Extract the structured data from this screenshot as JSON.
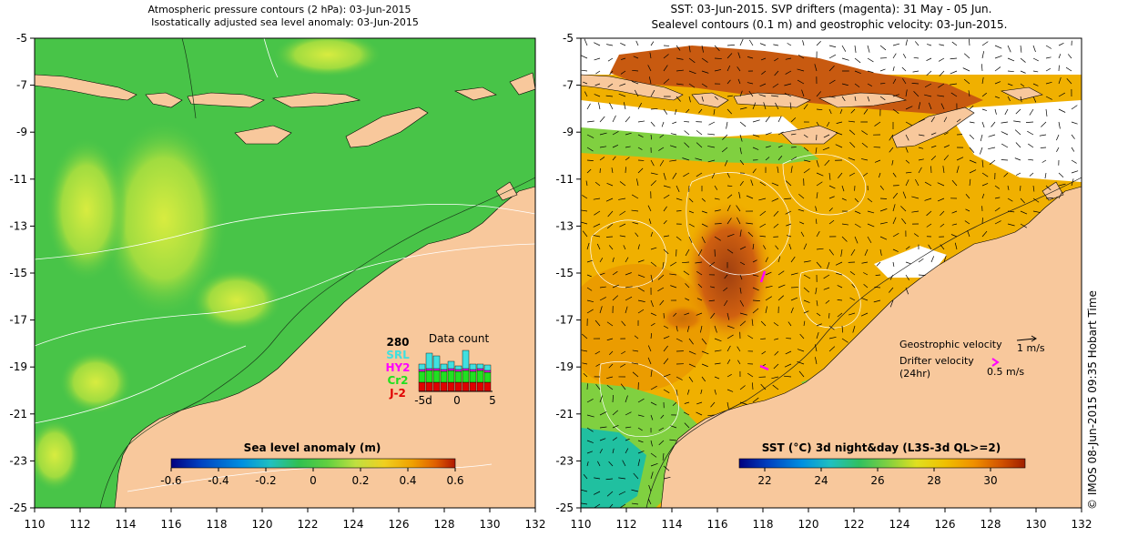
{
  "left_panel": {
    "title_line1": "Atmospheric pressure contours (2 hPa): 03-Jun-2015",
    "title_line2": "Isostatically adjusted sea level anomaly: 03-Jun-2015",
    "colorbar": {
      "title": "Sea level anomaly (m)",
      "ticks": [
        "-0.6",
        "-0.4",
        "-0.2",
        "0",
        "0.2",
        "0.4",
        "0.6"
      ],
      "colors": [
        "#000080",
        "#0040c0",
        "#0090e0",
        "#20c0c0",
        "#30c060",
        "#30b030",
        "#60d040",
        "#c0e040",
        "#f0d020",
        "#f0a000",
        "#e06000",
        "#c02000"
      ]
    },
    "data_count": {
      "title": "Data count",
      "max_label": "280",
      "legend": [
        {
          "label": "SRL",
          "color": "#40e0e0"
        },
        {
          "label": "HY2",
          "color": "#ff00ff"
        },
        {
          "label": "Cr2",
          "color": "#20e020"
        },
        {
          "label": "J-2",
          "color": "#e00000"
        }
      ],
      "x_ticks": [
        "-5d",
        "0",
        "5"
      ]
    }
  },
  "right_panel": {
    "title_line1": "SST: 03-Jun-2015. SVP drifters (magenta): 31 May - 05 Jun.",
    "title_line2": "Sealevel contours (0.1 m) and geostrophic velocity: 03-Jun-2015.",
    "colorbar": {
      "title": "SST (°C) 3d night&day (L3S-3d QL>=2)",
      "ticks": [
        "22",
        "24",
        "26",
        "28",
        "30"
      ],
      "colors": [
        "#000080",
        "#0040c0",
        "#0090e0",
        "#20c0c0",
        "#30c060",
        "#40c040",
        "#a0e040",
        "#f0e000",
        "#f0b000",
        "#f08000",
        "#d05000",
        "#a02000"
      ]
    },
    "velocity_legend": {
      "geostrophic_label": "Geostrophic velocity",
      "geostrophic_scale": "1 m/s",
      "drifter_label": "Drifter velocity",
      "drifter_period": "(24hr)",
      "drifter_scale": "0.5 m/s"
    }
  },
  "axes": {
    "x_ticks": [
      "110",
      "112",
      "114",
      "116",
      "118",
      "120",
      "122",
      "124",
      "126",
      "128",
      "130",
      "132"
    ],
    "y_ticks": [
      "-5",
      "-7",
      "-9",
      "-11",
      "-13",
      "-15",
      "-17",
      "-19",
      "-21",
      "-23",
      "-25"
    ]
  },
  "colors": {
    "land": "#f8c89c",
    "sla_ocean": "#48c448",
    "sst_ocean": "#f0b000",
    "drifter": "#ff00ff"
  },
  "credit": "© IMOS 08-Jun-2015 09:35 Hobart Time"
}
